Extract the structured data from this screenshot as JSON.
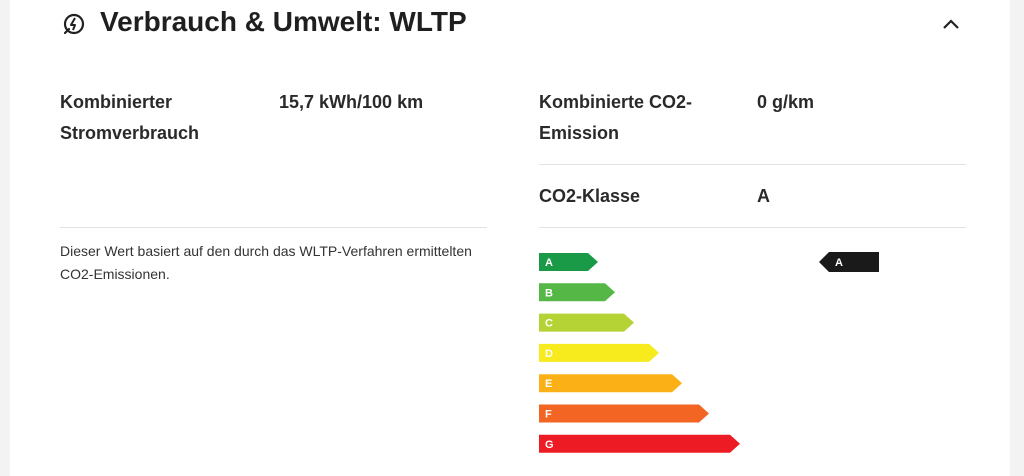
{
  "header": {
    "title": "Verbrauch & Umwelt: WLTP"
  },
  "specs": [
    {
      "label": "Kombinierter Stromverbrauch",
      "value": "15,7 kWh/100 km"
    },
    {
      "label": "Kombinierte CO2-Emission",
      "value": "0 g/km"
    },
    {
      "label": "CO2-Klasse",
      "value": "A"
    }
  ],
  "note": "Dieser Wert basiert auf den durch das WLTP-Verfahren ermittelten CO2-Emissionen.",
  "efficiency": {
    "classes": [
      "A",
      "B",
      "C",
      "D",
      "E",
      "F",
      "G"
    ],
    "current": "A"
  }
}
